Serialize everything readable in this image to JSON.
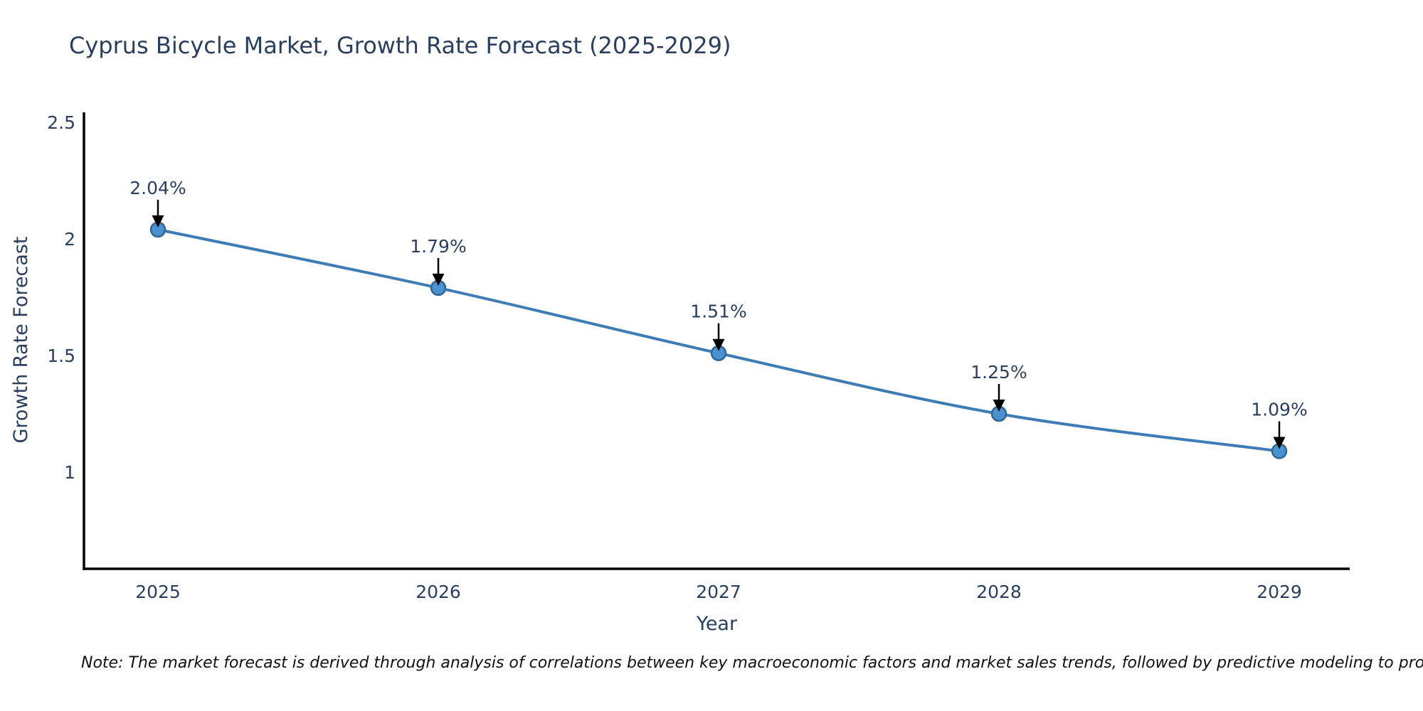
{
  "title": "Cyprus Bicycle Market, Growth Rate Forecast (2025-2029)",
  "note": "Note: The market forecast is derived through analysis of correlations between key macroeconomic factors and market sales trends, followed by predictive modeling to project future sales",
  "chart_data": {
    "type": "line",
    "title": "Cyprus Bicycle Market, Growth Rate Forecast (2025-2029)",
    "xlabel": "Year",
    "ylabel": "Growth Rate Forecast",
    "categories": [
      "2025",
      "2026",
      "2027",
      "2028",
      "2029"
    ],
    "values": [
      2.04,
      1.79,
      1.51,
      1.25,
      1.09
    ],
    "point_labels": [
      "2.04%",
      "1.79%",
      "1.51%",
      "1.25%",
      "1.09%"
    ],
    "y_tick_labels": [
      "2.5",
      "2",
      "1.5",
      "1"
    ],
    "y_tick_values": [
      2.5,
      2,
      1.5,
      1
    ],
    "ylim": [
      0.59,
      2.54
    ],
    "grid": false,
    "legend": "none",
    "line_smoothing": "spline",
    "annotation_style": "label-with-down-arrow",
    "colors": {
      "line": "#3e7cb6",
      "marker_fill": "#4a92cf",
      "marker_stroke": "#30659a",
      "axis": "#000000",
      "chart_text": "#2a3f5f",
      "arrow": "#000000",
      "note_text": "#111111"
    }
  }
}
